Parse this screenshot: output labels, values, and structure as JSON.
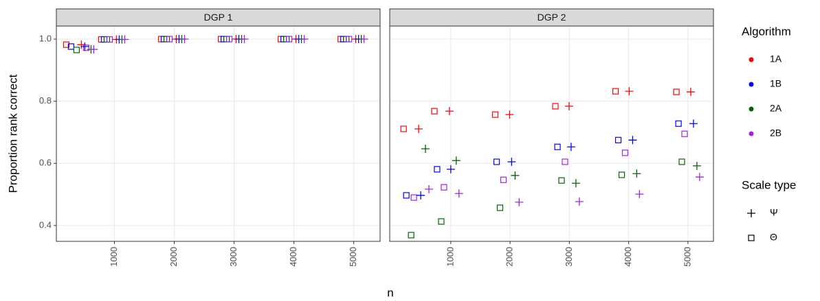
{
  "y_label": "Proportion rank correct",
  "x_label": "n",
  "legend": {
    "algorithm": {
      "title": "Algorithm",
      "items": [
        {
          "name": "1A",
          "color": "#ff0000"
        },
        {
          "name": "1B",
          "color": "#0000ff"
        },
        {
          "name": "2A",
          "color": "#006400"
        },
        {
          "name": "2B",
          "color": "#a020f0"
        }
      ]
    },
    "scale_type": {
      "title": "Scale type",
      "items": [
        {
          "name": "Ψ",
          "marker": "plus"
        },
        {
          "name": "Θ",
          "marker": "square"
        }
      ]
    }
  },
  "chart_data": [
    {
      "type": "scatter",
      "title": "DGP 1",
      "grid": true,
      "xlim": [
        30,
        5440
      ],
      "xticks": [
        1000,
        2000,
        3000,
        4000,
        5000
      ],
      "ylim": [
        0.349,
        1.042
      ],
      "yticks": [
        {
          "value": 0.4,
          "label": "0.4"
        },
        {
          "value": 0.6,
          "label": "0.6"
        },
        {
          "value": 0.8,
          "label": "0.8"
        },
        {
          "value": 1,
          "label": "1.0"
        }
      ],
      "series": [
        {
          "algorithm": "1A",
          "scale_type": "Θ",
          "color": "#ff0000",
          "marker": "square",
          "x": [
            196,
            782,
            1782,
            2782,
            3782,
            4782
          ],
          "values": [
            0.982,
            0.999,
            1,
            1,
            1,
            1
          ]
        },
        {
          "algorithm": "1B",
          "scale_type": "Θ",
          "color": "#0000ff",
          "marker": "square",
          "x": [
            276,
            828,
            1828,
            2828,
            3828,
            4828
          ],
          "values": [
            0.976,
            0.999,
            1,
            1,
            1,
            1
          ]
        },
        {
          "algorithm": "2A",
          "scale_type": "Θ",
          "color": "#006400",
          "marker": "square",
          "x": [
            368,
            874,
            1874,
            2874,
            3874,
            4874
          ],
          "values": [
            0.965,
            0.999,
            1,
            1,
            1,
            1
          ]
        },
        {
          "algorithm": "2B",
          "scale_type": "Θ",
          "color": "#a020f0",
          "marker": "square",
          "x": [
            529,
            920,
            1920,
            2920,
            3920,
            4920
          ],
          "values": [
            0.972,
            0.999,
            1,
            1,
            1,
            1
          ]
        },
        {
          "algorithm": "1A",
          "scale_type": "Ψ",
          "color": "#ff0000",
          "marker": "plus",
          "x": [
            448,
            1034,
            2034,
            3034,
            4034,
            5034
          ],
          "values": [
            0.982,
            0.999,
            1,
            1,
            1,
            1
          ]
        },
        {
          "algorithm": "1B",
          "scale_type": "Ψ",
          "color": "#0000ff",
          "marker": "plus",
          "x": [
            506,
            1080,
            2080,
            3080,
            4080,
            5080
          ],
          "values": [
            0.976,
            0.999,
            1,
            1,
            1,
            1
          ]
        },
        {
          "algorithm": "2A",
          "scale_type": "Ψ",
          "color": "#006400",
          "marker": "plus",
          "x": [
            609,
            1126,
            2126,
            3126,
            4126,
            5126
          ],
          "values": [
            0.967,
            0.999,
            1,
            1,
            1,
            1
          ]
        },
        {
          "algorithm": "2B",
          "scale_type": "Ψ",
          "color": "#a020f0",
          "marker": "plus",
          "x": [
            655,
            1172,
            2172,
            3172,
            4172,
            5172
          ],
          "values": [
            0.967,
            0.999,
            1,
            1,
            1,
            1
          ]
        }
      ]
    },
    {
      "type": "scatter",
      "title": "DGP 2",
      "grid": true,
      "xlim": [
        -30,
        5430
      ],
      "xticks": [
        1000,
        2000,
        3000,
        4000,
        5000
      ],
      "ylim": [
        0.349,
        1.042
      ],
      "yticks": [
        {
          "value": 0.4,
          "label": "0.4"
        },
        {
          "value": 0.6,
          "label": "0.6"
        },
        {
          "value": 0.8,
          "label": "0.8"
        },
        {
          "value": 1,
          "label": "1.0"
        }
      ],
      "series": [
        {
          "algorithm": "1A",
          "scale_type": "Θ",
          "color": "#ff0000",
          "marker": "square",
          "x": [
            204,
            723,
            1749,
            2764,
            3779,
            4805
          ],
          "values": [
            0.711,
            0.768,
            0.757,
            0.784,
            0.832,
            0.83
          ]
        },
        {
          "algorithm": "1B",
          "scale_type": "Θ",
          "color": "#0000ff",
          "marker": "square",
          "x": [
            250,
            769,
            1773,
            2799,
            3825,
            4840
          ],
          "values": [
            0.497,
            0.581,
            0.605,
            0.653,
            0.675,
            0.728
          ]
        },
        {
          "algorithm": "2A",
          "scale_type": "Θ",
          "color": "#006400",
          "marker": "square",
          "x": [
            331,
            839,
            1830,
            2868,
            3883,
            4897
          ],
          "values": [
            0.369,
            0.413,
            0.457,
            0.545,
            0.563,
            0.605
          ]
        },
        {
          "algorithm": "2B",
          "scale_type": "Θ",
          "color": "#a020f0",
          "marker": "square",
          "x": [
            377,
            885,
            1888,
            2926,
            3940,
            4943
          ],
          "values": [
            0.49,
            0.523,
            0.547,
            0.605,
            0.634,
            0.695
          ]
        },
        {
          "algorithm": "1A",
          "scale_type": "Ψ",
          "color": "#ff0000",
          "marker": "plus",
          "x": [
            458,
            977,
            1992,
            2995,
            4009,
            5047
          ],
          "values": [
            0.711,
            0.768,
            0.757,
            0.784,
            0.832,
            0.83
          ]
        },
        {
          "algorithm": "1B",
          "scale_type": "Ψ",
          "color": "#0000ff",
          "marker": "plus",
          "x": [
            493,
            1000,
            2026,
            3029,
            4067,
            5093
          ],
          "values": [
            0.497,
            0.581,
            0.605,
            0.653,
            0.675,
            0.728
          ]
        },
        {
          "algorithm": "2A",
          "scale_type": "Ψ",
          "color": "#006400",
          "marker": "plus",
          "x": [
            573,
            1092,
            2084,
            3110,
            4136,
            5151
          ],
          "values": [
            0.647,
            0.609,
            0.561,
            0.536,
            0.567,
            0.592
          ]
        },
        {
          "algorithm": "2B",
          "scale_type": "Ψ",
          "color": "#a020f0",
          "marker": "plus",
          "x": [
            631,
            1138,
            2153,
            3168,
            4182,
            5197
          ],
          "values": [
            0.517,
            0.503,
            0.475,
            0.477,
            0.501,
            0.556
          ]
        }
      ]
    }
  ]
}
